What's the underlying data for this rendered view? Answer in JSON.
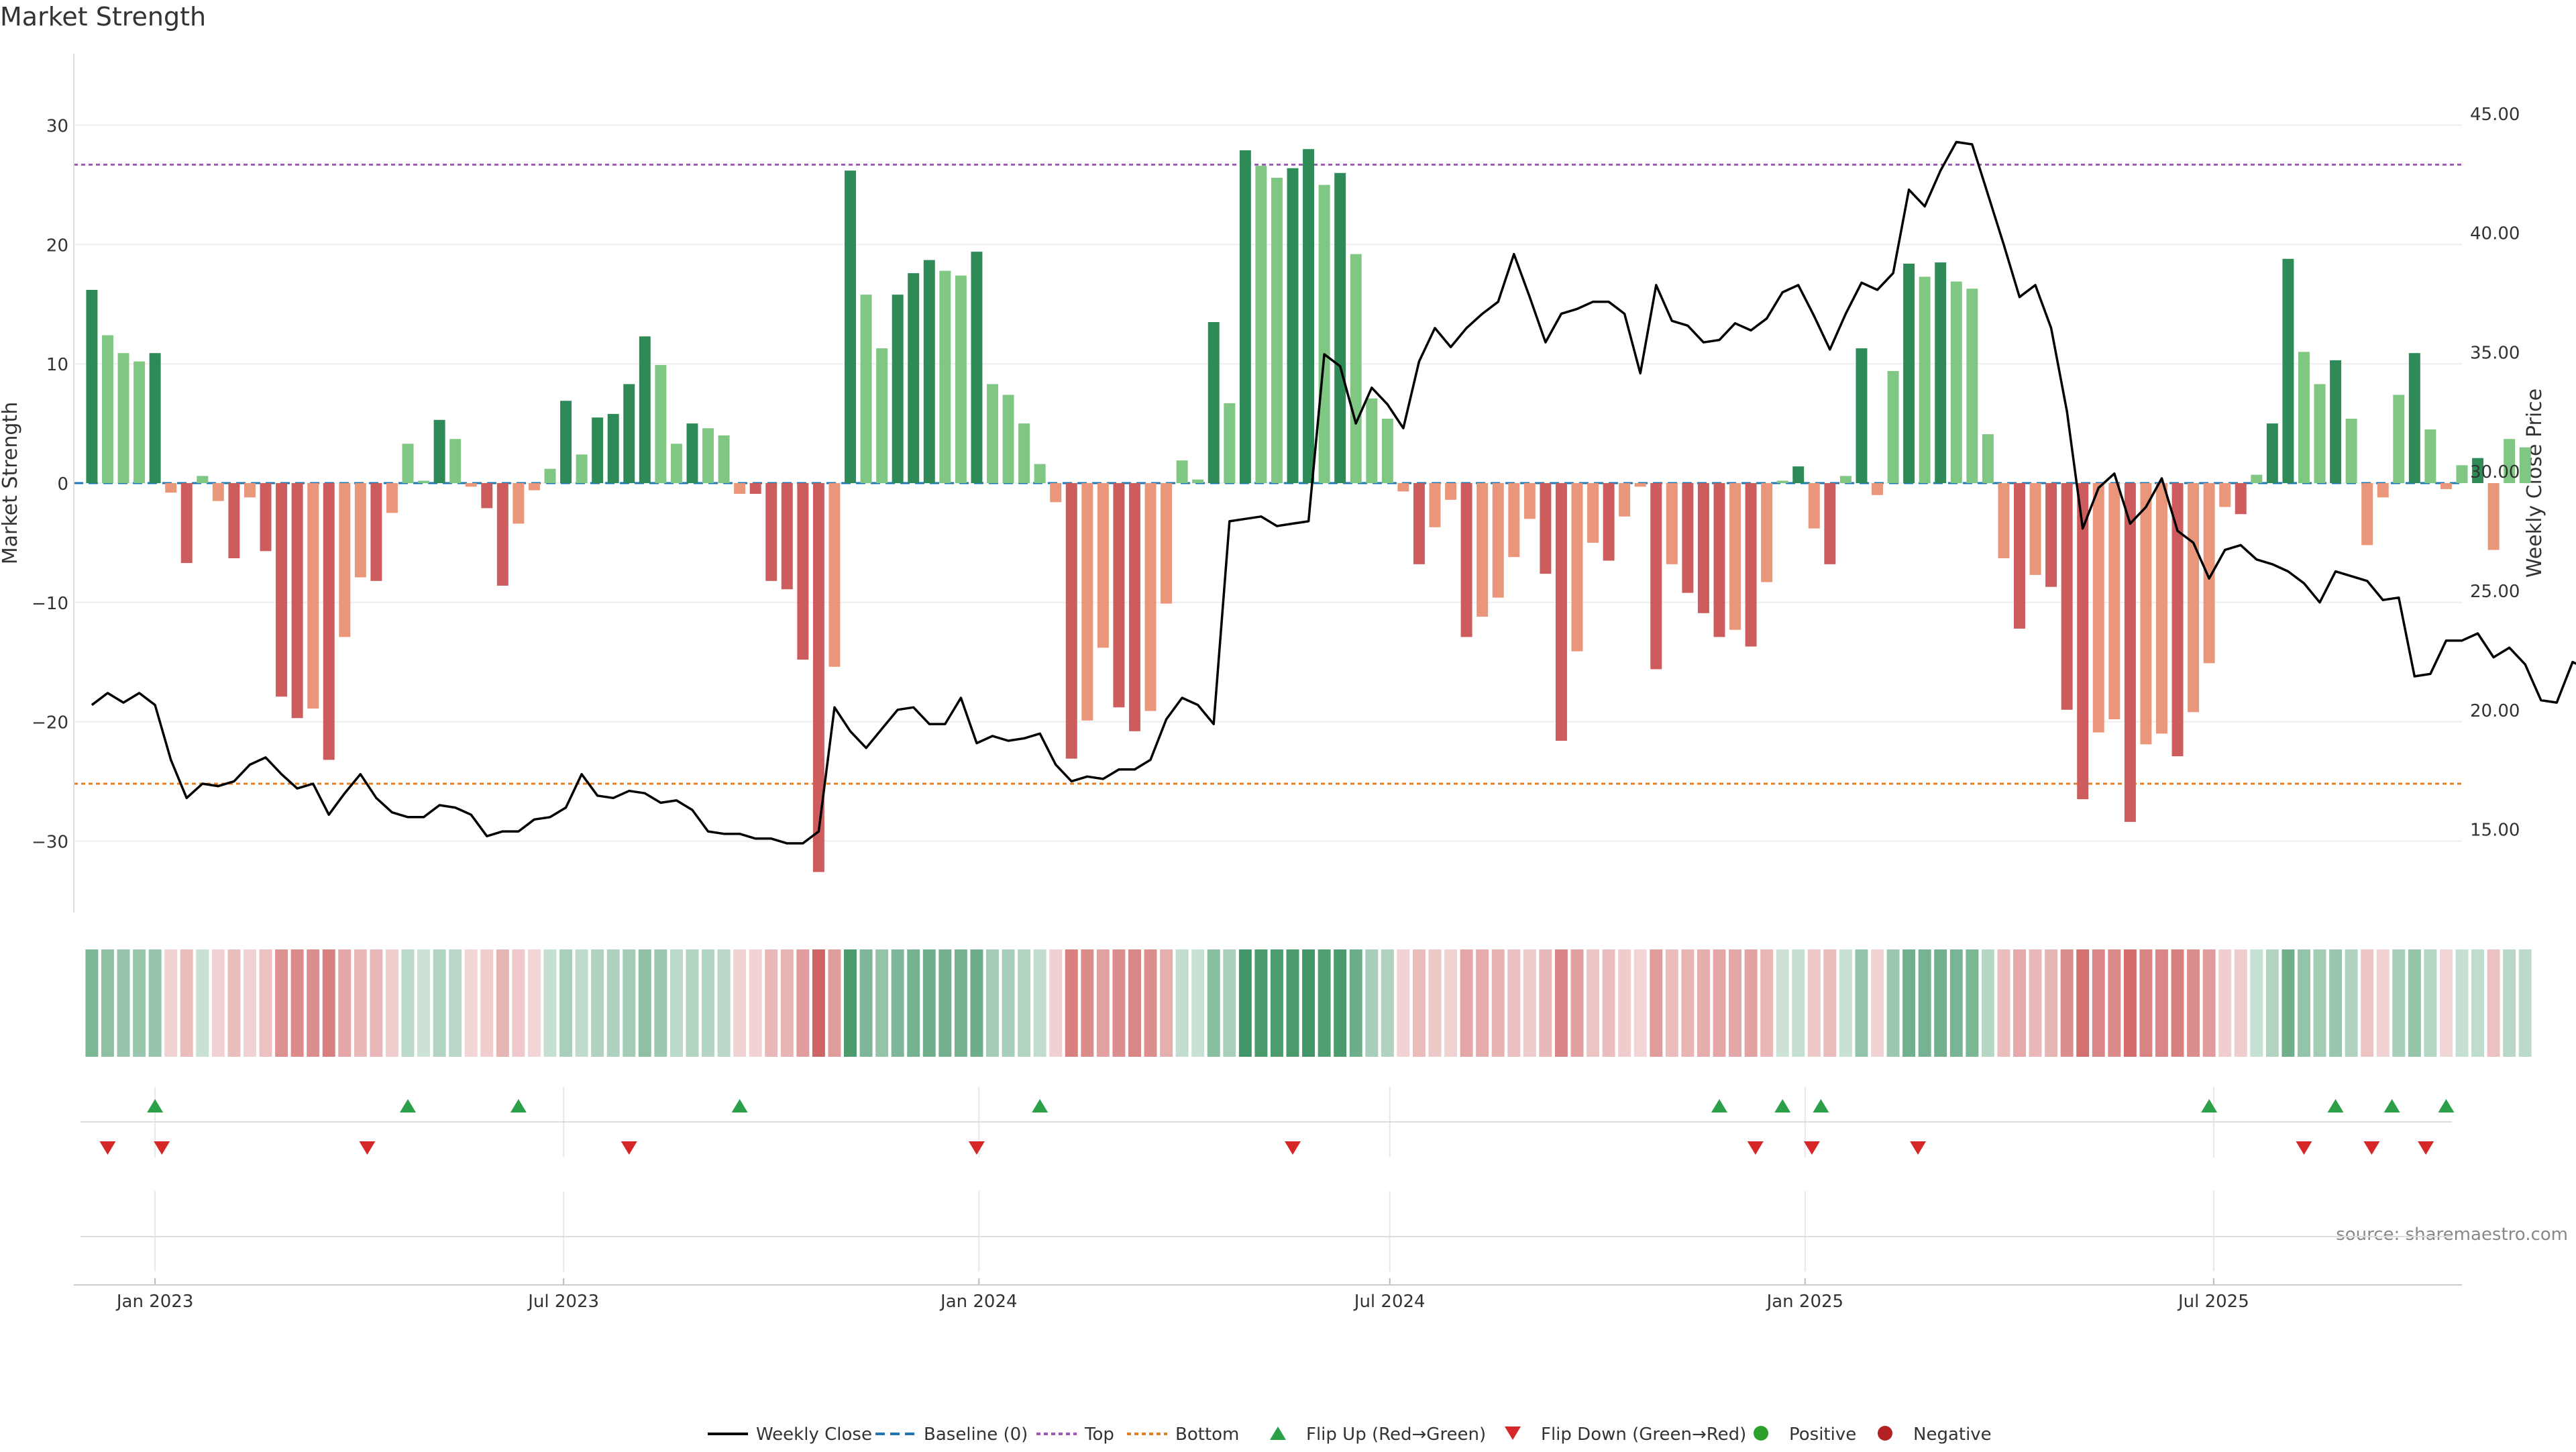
{
  "chart_data": {
    "type": "bar",
    "title": "Market Strength",
    "ylabel_left": "Market Strength",
    "ylabel_right": "Weekly Close Price",
    "source": "source: sharemaestro.com",
    "ylim_left": [
      -36,
      36
    ],
    "ylim_right": [
      11.5,
      47.5
    ],
    "x_range": [
      "2022-11-26",
      "2025-10-19"
    ],
    "left_ticks": [
      "30",
      "20",
      "10",
      "0",
      "−10",
      "−20",
      "−30"
    ],
    "right_ticks": [
      "45.00",
      "40.00",
      "35.00",
      "30.00",
      "25.00",
      "20.00",
      "15.00"
    ],
    "x_ticks": [
      {
        "date": "2023-01-01",
        "label": "Jan 2023"
      },
      {
        "date": "2023-07-01",
        "label": "Jul 2023"
      },
      {
        "date": "2024-01-01",
        "label": "Jan 2024"
      },
      {
        "date": "2024-07-01",
        "label": "Jul 2024"
      },
      {
        "date": "2025-01-01",
        "label": "Jan 2025"
      },
      {
        "date": "2025-07-01",
        "label": "Jul 2025"
      }
    ],
    "top_level": 26.7,
    "bottom_level": -25.2,
    "start_week": "2022-12-04",
    "week_step_days": 7,
    "strength": [
      16.2,
      12.4,
      10.9,
      10.2,
      10.9,
      -0.8,
      -6.7,
      0.6,
      -1.5,
      -6.3,
      -1.2,
      -5.7,
      -17.9,
      -19.7,
      -18.9,
      -23.2,
      -12.9,
      -7.9,
      -8.2,
      -2.5,
      3.3,
      0.2,
      5.3,
      3.7,
      -0.3,
      -2.1,
      -8.6,
      -3.4,
      -0.6,
      1.2,
      6.9,
      2.4,
      5.5,
      5.8,
      8.3,
      12.3,
      9.9,
      3.3,
      5.0,
      4.6,
      4.0,
      -0.9,
      -0.9,
      -8.2,
      -8.9,
      -14.8,
      -32.6,
      -15.4,
      26.2,
      15.8,
      11.3,
      15.8,
      17.6,
      18.7,
      17.8,
      17.4,
      19.4,
      8.3,
      7.4,
      5.0,
      1.6,
      -1.6,
      -23.1,
      -19.9,
      -13.8,
      -18.8,
      -20.8,
      -19.1,
      -10.1,
      1.9,
      0.3,
      13.5,
      6.7,
      27.9,
      26.6,
      25.6,
      26.4,
      28.0,
      25.0,
      26.0,
      19.2,
      7.1,
      5.4,
      -0.7,
      -6.8,
      -3.7,
      -1.4,
      -12.9,
      -11.2,
      -9.6,
      -6.2,
      -3.0,
      -7.6,
      -21.6,
      -14.1,
      -5.0,
      -6.5,
      -2.8,
      -0.3,
      -15.6,
      -6.8,
      -9.2,
      -10.9,
      -12.9,
      -12.3,
      -13.7,
      -8.3,
      0.2,
      1.4,
      -3.8,
      -6.8,
      0.6,
      11.3,
      -1.0,
      9.4,
      18.4,
      17.3,
      18.5,
      16.9,
      16.3,
      4.1,
      -6.3,
      -12.2,
      -7.7,
      -8.7,
      -19.0,
      -26.5,
      -20.9,
      -19.8,
      -28.4,
      -21.9,
      -21.0,
      -22.9,
      -19.2,
      -15.1,
      -2.0,
      -2.6,
      0.7,
      5.0,
      18.8,
      11.0,
      8.3,
      10.3,
      5.4,
      -5.2,
      -1.2,
      7.4,
      10.9,
      4.5,
      -0.5,
      1.5,
      2.1,
      -5.6,
      3.7,
      3.0
    ],
    "weekly_close": [
      20.2,
      20.7,
      20.3,
      20.7,
      20.2,
      17.9,
      16.3,
      16.9,
      16.8,
      17.0,
      17.7,
      18.0,
      17.3,
      16.7,
      16.9,
      15.6,
      16.5,
      17.3,
      16.3,
      15.7,
      15.5,
      15.5,
      16.0,
      15.9,
      15.6,
      14.7,
      14.9,
      14.9,
      15.4,
      15.5,
      15.9,
      17.3,
      16.4,
      16.3,
      16.6,
      16.5,
      16.1,
      16.2,
      15.8,
      14.9,
      14.8,
      14.8,
      14.6,
      14.6,
      14.4,
      14.4,
      14.9,
      20.1,
      19.1,
      18.4,
      19.2,
      20.0,
      20.1,
      19.4,
      19.4,
      20.5,
      18.6,
      18.9,
      18.7,
      18.8,
      19.0,
      17.7,
      17.0,
      17.2,
      17.1,
      17.5,
      17.5,
      17.9,
      19.6,
      20.5,
      20.2,
      19.4,
      27.9,
      28.0,
      28.1,
      27.7,
      27.8,
      27.9,
      34.9,
      34.4,
      32.0,
      33.5,
      32.8,
      31.8,
      34.6,
      36.0,
      35.2,
      36.0,
      36.6,
      37.1,
      39.1,
      37.3,
      35.4,
      36.6,
      36.8,
      37.1,
      37.1,
      36.6,
      34.1,
      37.8,
      36.3,
      36.1,
      35.4,
      35.5,
      36.2,
      35.9,
      36.4,
      37.5,
      37.8,
      36.5,
      35.1,
      36.6,
      37.9,
      37.6,
      38.3,
      41.8,
      41.1,
      42.6,
      43.8,
      43.7,
      41.6,
      39.5,
      37.3,
      37.8,
      36.0,
      32.5,
      27.6,
      29.3,
      29.9,
      27.8,
      28.5,
      29.7,
      27.5,
      27.0,
      25.5,
      26.7,
      26.9,
      26.3,
      26.1,
      25.8,
      25.3,
      24.5,
      25.8,
      25.6,
      25.4,
      24.6,
      24.7,
      21.4,
      21.5,
      22.9,
      22.9,
      23.2,
      22.2,
      22.6,
      21.9,
      20.4,
      20.3,
      22.0,
      21.7
    ],
    "flip_up_dates": [
      "2023-01-01",
      "2023-04-23",
      "2023-06-11",
      "2023-09-17",
      "2024-01-28",
      "2024-11-24",
      "2024-12-22",
      "2025-01-08",
      "2025-06-29",
      "2025-08-24",
      "2025-09-18",
      "2025-10-12"
    ],
    "flip_down_dates": [
      "2022-12-11",
      "2023-01-04",
      "2023-04-05",
      "2023-07-30",
      "2023-12-31",
      "2024-05-19",
      "2024-12-10",
      "2025-01-04",
      "2025-02-20",
      "2025-08-10",
      "2025-09-09",
      "2025-10-03"
    ],
    "legend": [
      "Weekly Close",
      "Baseline (0)",
      "Top",
      "Bottom",
      "Flip Up (Red→Green)",
      "Flip Down (Green→Red)",
      "Positive",
      "Negative"
    ],
    "grid": true,
    "legend_position": "bottom-center"
  },
  "colors": {
    "green_strong": "#2e8b57",
    "green_light": "#81c784",
    "red_strong": "#cd5c5c",
    "red_light": "#e9967a",
    "line": "#000000",
    "top_line": "#9b59b6",
    "bottom_line": "#e67e22",
    "baseline": "#1f77b4",
    "flip_up": "#2ca048",
    "flip_down": "#d62728",
    "positive_marker": "#2ca02c",
    "negative_marker": "#b22222",
    "text": "#333333",
    "grid": "#eeeeee"
  }
}
